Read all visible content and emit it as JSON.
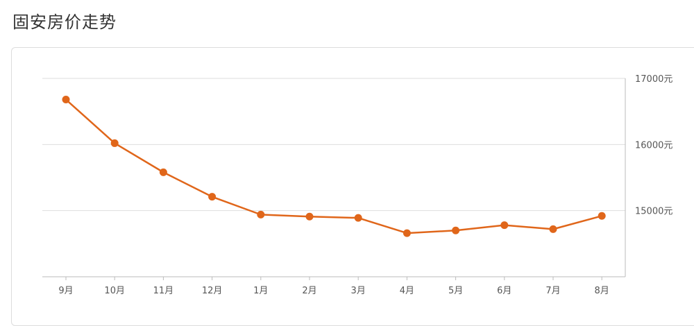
{
  "page": {
    "title": "固安房价走势"
  },
  "chart_data": {
    "type": "line",
    "title": "",
    "xlabel": "",
    "ylabel": "",
    "categories": [
      "9月",
      "10月",
      "11月",
      "12月",
      "1月",
      "2月",
      "3月",
      "4月",
      "5月",
      "6月",
      "7月",
      "8月"
    ],
    "series": [
      {
        "values": [
          16680,
          16020,
          15580,
          15210,
          14940,
          14910,
          14890,
          14660,
          14700,
          14780,
          14720,
          14920
        ]
      }
    ],
    "ylim": [
      14000,
      17000
    ],
    "yticks": [
      15000,
      16000,
      17000
    ],
    "ytick_labels": [
      "15000元",
      "16000元",
      "17000元"
    ],
    "y_axis_position": "right",
    "grid": true,
    "line_color": "#e0661a",
    "marker_color": "#e0661a",
    "grid_color": "#dddddd",
    "axis_color": "#bbbbbb"
  }
}
